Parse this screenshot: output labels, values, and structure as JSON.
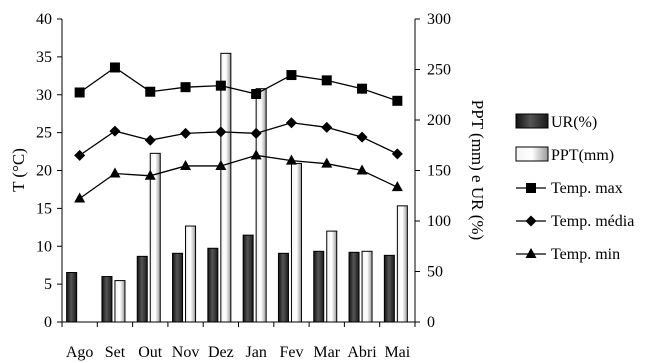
{
  "chart_data": {
    "type": "bar",
    "categories": [
      "Ago",
      "Set",
      "Out",
      "Nov",
      "Dez",
      "Jan",
      "Fev",
      "Mar",
      "Abri",
      "Mai"
    ],
    "y_left": {
      "label": "T (°C)",
      "ylim": [
        0,
        40
      ],
      "ticks": [
        "0",
        "5",
        "10",
        "15",
        "20",
        "25",
        "30",
        "35",
        "40"
      ]
    },
    "y_right": {
      "label": "PPT (mm) e UR (%)",
      "ylim": [
        0,
        300
      ],
      "ticks": [
        "0",
        "50",
        "100",
        "150",
        "200",
        "250",
        "300"
      ]
    },
    "bars": [
      {
        "name": "UR(%)",
        "axis": "right",
        "style": "dark",
        "values": [
          49,
          45,
          65,
          68,
          73,
          86,
          68,
          70,
          69,
          66
        ]
      },
      {
        "name": "PPT(mm)",
        "axis": "right",
        "style": "light",
        "values": [
          null,
          41,
          167,
          95,
          266,
          231,
          157,
          90,
          70,
          115
        ]
      }
    ],
    "lines": [
      {
        "name": "Temp. max",
        "axis": "left",
        "marker": "square",
        "values": [
          30.3,
          33.6,
          30.4,
          31.0,
          31.2,
          30.1,
          32.6,
          31.9,
          30.8,
          29.2
        ]
      },
      {
        "name": "Temp. média",
        "axis": "left",
        "marker": "diamond",
        "values": [
          22.0,
          25.2,
          24.0,
          24.9,
          25.1,
          24.9,
          26.3,
          25.7,
          24.4,
          22.2
        ]
      },
      {
        "name": "Temp. min",
        "axis": "left",
        "marker": "triangle",
        "values": [
          16.3,
          19.6,
          19.3,
          20.6,
          20.6,
          22.0,
          21.3,
          20.9,
          20.0,
          17.8
        ]
      }
    ],
    "legend": [
      "UR(%)",
      "PPT(mm)",
      "Temp. max",
      "Temp. média",
      "Temp. min"
    ],
    "legend_position": "right",
    "grid": false
  }
}
